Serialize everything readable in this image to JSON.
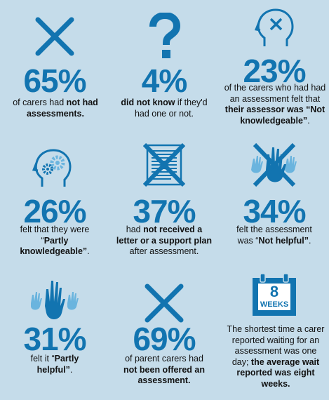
{
  "colors": {
    "background": "#c5dcea",
    "accent": "#1274b0",
    "accent_light": "#6ab4de",
    "text": "#111111"
  },
  "stats": [
    {
      "icon": "x-mark-icon",
      "percent": "65%",
      "t1": "of carers had ",
      "b1": "not",
      "t2": "",
      "b2": "had assessments.",
      "t3": ""
    },
    {
      "icon": "question-mark-icon",
      "percent": "4%",
      "t1": "",
      "b1": "did not know",
      "t2": " if they'd had one or not.",
      "b2": "",
      "t3": ""
    },
    {
      "icon": "head-x-icon",
      "percent": "23%",
      "t1": "of the carers who had had an assessment felt that ",
      "b1": "their assessor was “Not knowledgeable”",
      "t2": ".",
      "b2": "",
      "t3": ""
    },
    {
      "icon": "head-gears-icon",
      "percent": "26%",
      "t1": "felt that they were “",
      "b1": "Partly knowledgeable”",
      "t2": ".",
      "b2": "",
      "t3": ""
    },
    {
      "icon": "crossed-document-icon",
      "percent": "37%",
      "t1": "had ",
      "b1": "not received a letter or a support plan",
      "t2": " after assessment.",
      "b2": "",
      "t3": ""
    },
    {
      "icon": "crossed-hands-icon",
      "percent": "34%",
      "t1": "felt the assessment was “",
      "b1": "Not helpful”",
      "t2": ".",
      "b2": "",
      "t3": ""
    },
    {
      "icon": "raised-hands-icon",
      "percent": "31%",
      "t1": "felt it “",
      "b1": "Partly helpful”",
      "t2": ".",
      "b2": "",
      "t3": ""
    },
    {
      "icon": "x-mark-icon",
      "percent": "69%",
      "t1": "of parent carers had ",
      "b1": "not been offered an assessment.",
      "t2": "",
      "b2": "",
      "t3": ""
    },
    {
      "icon": "calendar-icon",
      "calendar_number": "8",
      "calendar_label": "WEEKS",
      "percent": "",
      "t1": "The shortest time a carer reported waiting for an assessment was one day; ",
      "b1": "the average wait reported was eight weeks.",
      "t2": "",
      "b2": "",
      "t3": ""
    }
  ]
}
